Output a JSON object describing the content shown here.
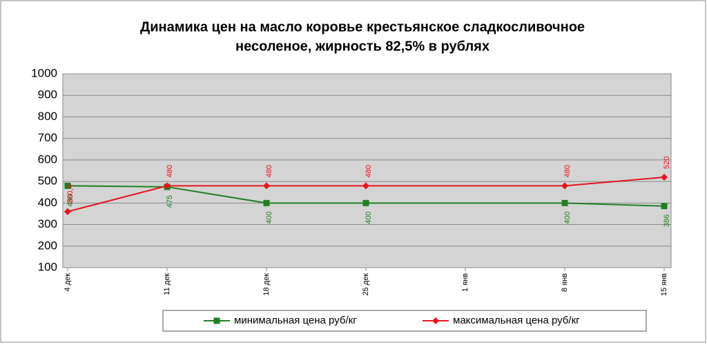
{
  "chart_data": {
    "type": "line",
    "title": [
      "Динамика цен на масло коровье крестьянское  сладкосливочное",
      "несоленое, жирность 82,5%  в рублях"
    ],
    "categories": [
      "4 дек",
      "11 дек",
      "18 дек",
      "25 дек",
      "1 янв",
      "8 янв",
      "15 янв"
    ],
    "series": [
      {
        "name": "минимальная цена руб/кг",
        "color": "#208020",
        "marker": "square",
        "values": [
          480,
          475,
          400,
          400,
          null,
          400,
          386
        ]
      },
      {
        "name": "максимальная цена руб/кг",
        "color": "#e8141c",
        "marker": "diamond",
        "values": [
          360.4,
          480,
          480,
          480,
          null,
          480,
          520
        ],
        "value_labels": [
          "360,4",
          "480",
          "480",
          "480",
          null,
          "480",
          "520"
        ]
      }
    ],
    "ylim": [
      100,
      1000
    ],
    "yticks": [
      100,
      200,
      300,
      400,
      500,
      600,
      700,
      800,
      900,
      1000
    ],
    "grid": true,
    "legend": "bottom"
  }
}
